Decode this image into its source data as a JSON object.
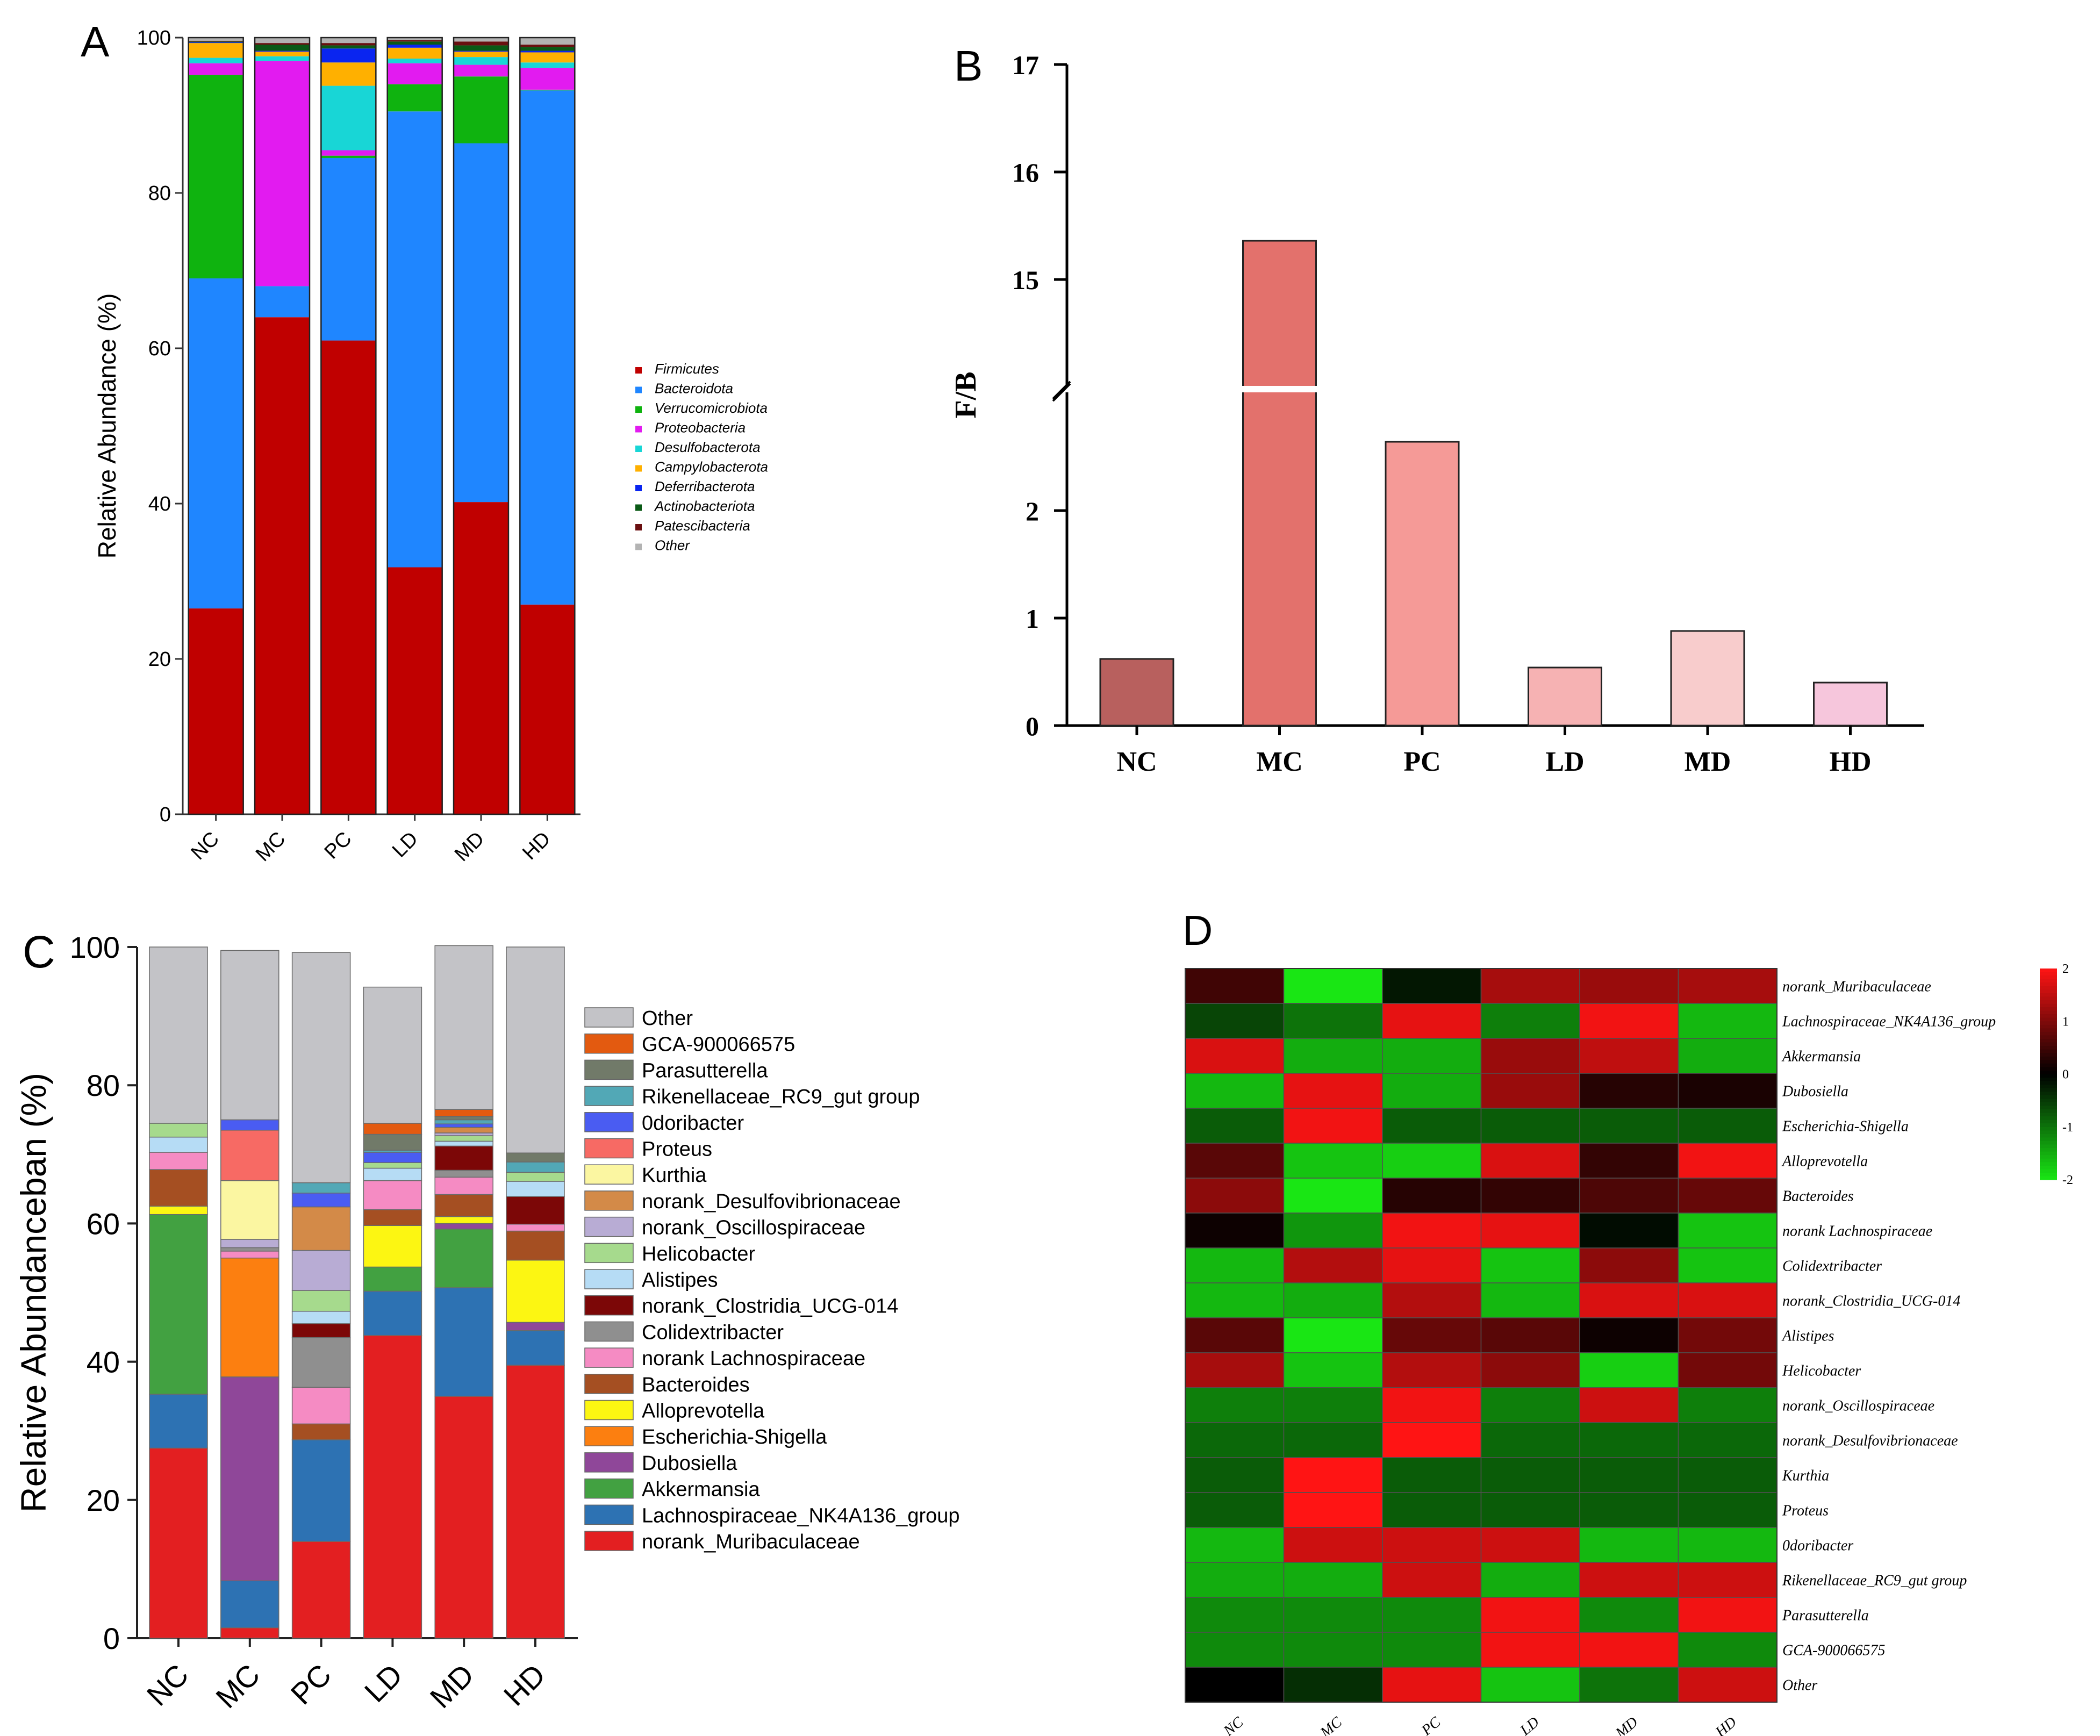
{
  "colors": {
    "panelA": {
      "Firmicutes": "#c00000",
      "Bacteroidota": "#1f86ff",
      "Verrucomicrobiota": "#0fb30f",
      "Proteobacteria": "#e21bf0",
      "Desulfobacterota": "#18d6d6",
      "Campylobacterota": "#ffb000",
      "Deferribacterota": "#0a25f0",
      "Actinobacteriota": "#0a5a16",
      "Patescibacteria": "#6a0f10",
      "Other": "#b3b3b3"
    },
    "panelB": [
      "#b8605e",
      "#e3716c",
      "#f59a97",
      "#f6b2b3",
      "#f8cccc",
      "#f6c6dc"
    ],
    "panelC": {
      "Other": "#c3c3c7",
      "GCA-900066575": "#e35a10",
      "Parasutterella": "#717a69",
      "Rikenellaceae_RC9_gut group": "#52a8b6",
      "0doribacter": "#4a5cf2",
      "Proteus": "#f76a64",
      "Kurthia": "#fbf6a1",
      "norank_Desulfovibrionaceae": "#d38a48",
      "norank_Oscillospiraceae": "#b8acd4",
      "Helicobacter": "#a6da8d",
      "Alistipes": "#b6dcf5",
      "norank_Clostridia_UCG-014": "#7c0707",
      "Colidextribacter": "#8f8f8f",
      "norank Lachnospiraceae": "#f58bc3",
      "Bacteroides": "#a54f22",
      "Alloprevotella": "#fcf612",
      "Escherichia-Shigella": "#fc7f10",
      "Dubosiella": "#8f4799",
      "Akkermansia": "#42a141",
      "Lachnospiraceae_NK4A136_group": "#2d72b3",
      "norank_Muribaculaceae": "#e31f21"
    }
  },
  "chart_data": [
    {
      "panel": "A",
      "panel_label": "A",
      "type": "bar",
      "stacked": true,
      "categories": [
        "NC",
        "MC",
        "PC",
        "LD",
        "MD",
        "HD"
      ],
      "ylabel": "Relative Abundance (%)",
      "ylim": [
        0,
        100
      ],
      "yticks": [
        "0",
        "20",
        "40",
        "60",
        "80",
        "100"
      ],
      "legend_position": "right",
      "series": [
        {
          "name": "Firmicutes",
          "values": [
            26.5,
            64,
            61,
            31.8,
            40.2,
            27
          ]
        },
        {
          "name": "Bacteroidota",
          "values": [
            42.5,
            4,
            23.5,
            58.7,
            46.2,
            66.2
          ]
        },
        {
          "name": "Verrucomicrobiota",
          "values": [
            26.2,
            0,
            0.3,
            3.5,
            8.6,
            0.1
          ]
        },
        {
          "name": "Proteobacteria",
          "values": [
            1.5,
            29,
            0.7,
            2.7,
            1.5,
            2.8
          ]
        },
        {
          "name": "Desulfobacterota",
          "values": [
            0.7,
            0.6,
            8.3,
            0.6,
            1,
            0.7
          ]
        },
        {
          "name": "Campylobacterota",
          "values": [
            1.9,
            0.6,
            3,
            1.4,
            0.7,
            1.3
          ]
        },
        {
          "name": "Deferribacterota",
          "values": [
            0.1,
            0.1,
            1.8,
            0.4,
            0.1,
            0.2
          ]
        },
        {
          "name": "Actinobacteriota",
          "values": [
            0.1,
            0.8,
            0.4,
            0.4,
            0.7,
            0.5
          ]
        },
        {
          "name": "Patescibacteria",
          "values": [
            0.1,
            0.2,
            0.3,
            0.2,
            0.5,
            0.3
          ]
        },
        {
          "name": "Other",
          "values": [
            0.4,
            0.7,
            0.7,
            0.3,
            0.5,
            0.9
          ]
        }
      ]
    },
    {
      "panel": "B",
      "panel_label": "B",
      "type": "bar",
      "categories": [
        "NC",
        "MC",
        "PC",
        "LD",
        "MD",
        "HD"
      ],
      "values": [
        0.62,
        15.36,
        2.64,
        0.54,
        0.88,
        0.4
      ],
      "ylabel": "F/B",
      "axis_break": [
        3,
        14
      ],
      "yticks_lower": [
        "0",
        "1",
        "2"
      ],
      "yticks_upper": [
        "15",
        "16",
        "17"
      ],
      "ylim": [
        0,
        17
      ]
    },
    {
      "panel": "C",
      "panel_label": "C",
      "type": "bar",
      "stacked": true,
      "categories": [
        "NC",
        "MC",
        "PC",
        "LD",
        "MD",
        "HD"
      ],
      "ylabel": "Relative Abundanceban (%)",
      "ylim": [
        0,
        100
      ],
      "yticks": [
        "0",
        "20",
        "40",
        "60",
        "80",
        "100"
      ],
      "legend_position": "right",
      "series": [
        {
          "name": "norank_Muribaculaceae",
          "values": [
            27.5,
            1.5,
            14,
            43.8,
            35,
            39.5
          ]
        },
        {
          "name": "Lachnospiraceae_NK4A136_group",
          "values": [
            7.8,
            6.8,
            14.7,
            6.4,
            15.7,
            5
          ]
        },
        {
          "name": "Akkermansia",
          "values": [
            26,
            0,
            0,
            3.5,
            8.5,
            0
          ]
        },
        {
          "name": "Dubosiella",
          "values": [
            0,
            29.5,
            0,
            0,
            0.8,
            1.2
          ]
        },
        {
          "name": "Escherichia-Shigella",
          "values": [
            0,
            17.2,
            0,
            0,
            0,
            0
          ]
        },
        {
          "name": "Alloprevotella",
          "values": [
            1.2,
            0,
            0,
            6,
            1,
            9
          ]
        },
        {
          "name": "Bacteroides",
          "values": [
            5.3,
            0,
            2.3,
            2.3,
            3.2,
            4.2
          ]
        },
        {
          "name": "norank Lachnospiraceae",
          "values": [
            2.5,
            1,
            5.3,
            4.2,
            2.5,
            1
          ]
        },
        {
          "name": "Colidextribacter",
          "values": [
            0,
            0.5,
            7.2,
            0,
            1,
            0
          ]
        },
        {
          "name": "norank_Clostridia_UCG-014",
          "values": [
            0,
            0,
            2,
            0,
            3.5,
            4
          ]
        },
        {
          "name": "Alistipes",
          "values": [
            2.2,
            0,
            1.8,
            1.8,
            0.7,
            2.2
          ]
        },
        {
          "name": "Helicobacter",
          "values": [
            2,
            0,
            3,
            0.8,
            0.8,
            1.3
          ]
        },
        {
          "name": "norank_Oscillospiraceae",
          "values": [
            0,
            1.2,
            5.8,
            0,
            0.4,
            0
          ]
        },
        {
          "name": "norank_Desulfovibrionaceae",
          "values": [
            0,
            0,
            6.3,
            0,
            0.8,
            0
          ]
        },
        {
          "name": "Kurthia",
          "values": [
            0,
            8.5,
            0,
            0,
            0,
            0
          ]
        },
        {
          "name": "Proteus",
          "values": [
            0,
            7.3,
            0,
            0,
            0,
            0
          ]
        },
        {
          "name": "0doribacter",
          "values": [
            0,
            1.5,
            2,
            1.5,
            0.5,
            0
          ]
        },
        {
          "name": "Rikenellaceae_RC9_gut group",
          "values": [
            0,
            0,
            1.5,
            0.3,
            0.6,
            1.5
          ]
        },
        {
          "name": "Parasutterella",
          "values": [
            0,
            0,
            0,
            2.3,
            0.5,
            1.3
          ]
        },
        {
          "name": "GCA-900066575",
          "values": [
            0,
            0,
            0,
            1.6,
            1,
            0
          ]
        },
        {
          "name": "Other",
          "values": [
            25.5,
            24.5,
            33.3,
            19.7,
            23.7,
            29.8
          ]
        }
      ]
    },
    {
      "panel": "D",
      "panel_label": "D",
      "type": "heatmap",
      "columns": [
        "NC",
        "MC",
        "PC",
        "LD",
        "MD",
        "HD"
      ],
      "rows": [
        "norank_Muribaculaceae",
        "Lachnospiraceae_NK4A136_group",
        "Akkermansia",
        "Dubosiella",
        "Escherichia-Shigella",
        "Alloprevotella",
        "Bacteroides",
        "norank Lachnospiraceae",
        "Colidextribacter",
        "norank_Clostridia_UCG-014",
        "Alistipes",
        "Helicobacter",
        "norank_Oscillospiraceae",
        "norank_Desulfovibrionaceae",
        "Kurthia",
        "Proteus",
        "0doribacter",
        "Rikenellaceae_RC9_gut group",
        "Parasutterella",
        "GCA-900066575",
        "Other"
      ],
      "values": [
        [
          0.5,
          -2,
          -0.2,
          1.3,
          1.2,
          1.3
        ],
        [
          -0.6,
          -1,
          1.8,
          -1.1,
          1.9,
          -1.6
        ],
        [
          1.7,
          -1.5,
          -1.5,
          1.2,
          1.5,
          -1.5
        ],
        [
          -1.6,
          1.8,
          -1.5,
          1.2,
          0.3,
          0.2
        ],
        [
          -0.8,
          1.9,
          -0.8,
          -0.8,
          -0.8,
          -0.8
        ],
        [
          0.7,
          -1.7,
          -1.8,
          1.7,
          0.4,
          1.9
        ],
        [
          1.1,
          -2,
          0.3,
          0.4,
          0.6,
          0.8
        ],
        [
          0.1,
          -1.3,
          1.9,
          1.8,
          -0.1,
          -1.7
        ],
        [
          -1.6,
          1.4,
          1.8,
          -1.7,
          1.1,
          -1.7
        ],
        [
          -1.6,
          -1.5,
          1.4,
          -1.6,
          1.7,
          1.7
        ],
        [
          0.7,
          -2,
          0.8,
          0.7,
          0.1,
          0.9
        ],
        [
          1.3,
          -1.7,
          1.4,
          1.1,
          -1.8,
          0.9
        ],
        [
          -1.1,
          -1.1,
          1.9,
          -1.1,
          1.6,
          -1.1
        ],
        [
          -0.9,
          -0.9,
          2,
          -0.9,
          -0.9,
          -0.9
        ],
        [
          -0.8,
          2,
          -0.8,
          -0.8,
          -0.8,
          -0.8
        ],
        [
          -0.8,
          2,
          -0.8,
          -0.8,
          -0.8,
          -0.8
        ],
        [
          -1.6,
          1.6,
          1.6,
          1.6,
          -1.6,
          -1.6
        ],
        [
          -1.5,
          -1.5,
          1.6,
          -1.5,
          1.6,
          1.6
        ],
        [
          -1.2,
          -1.2,
          -1.2,
          1.9,
          -1.2,
          1.9
        ],
        [
          -1.2,
          -1.2,
          -1.2,
          1.9,
          1.9,
          -1.2
        ],
        [
          0,
          -0.4,
          1.8,
          -1.7,
          -1,
          1.6
        ]
      ],
      "colorbar_ticks": [
        "2",
        "1",
        "0",
        "-1",
        "-2"
      ],
      "colorbar_range": [
        -2,
        2
      ]
    }
  ]
}
